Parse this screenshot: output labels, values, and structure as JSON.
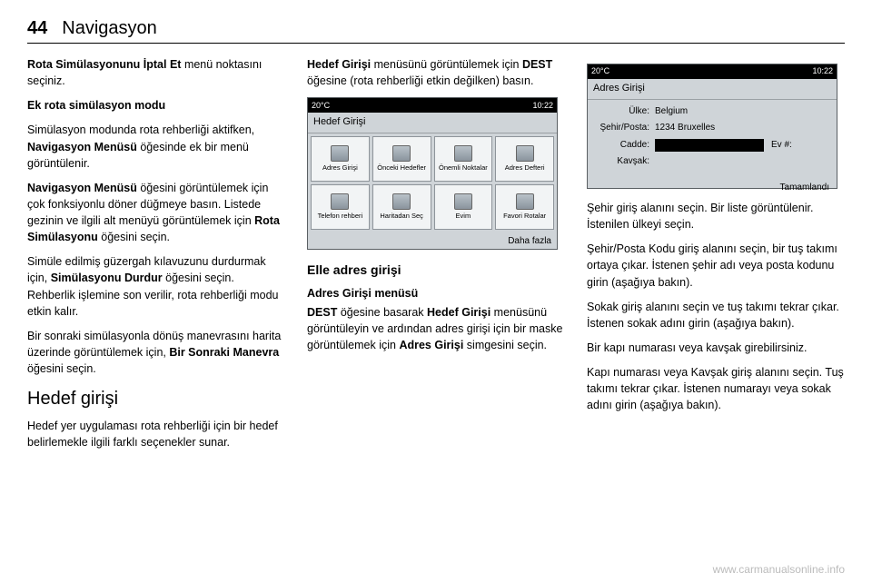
{
  "header": {
    "page_num": "44",
    "title": "Navigasyon"
  },
  "col1": {
    "p1a": "Rota Simülasyonunu İptal Et",
    "p1b": " menü noktasını seçiniz.",
    "sub1": "Ek rota simülasyon modu",
    "p2a": "Simülasyon modunda rota rehberliği aktifken, ",
    "p2b": "Navigasyon Menüsü",
    "p2c": " öğesinde ek bir menü görüntülenir.",
    "p3a": "Navigasyon Menüsü",
    "p3b": " öğesini görüntülemek için çok fonksiyonlu döner düğmeye basın. Listede gezinin ve ilgili alt menüyü görüntülemek için ",
    "p3c": "Rota Simülasyonu",
    "p3d": " öğesini seçin.",
    "p4a": "Simüle edilmiş güzergah kılavuzunu durdurmak için, ",
    "p4b": "Simülasyonu Durdur",
    "p4c": " öğesini seçin. Rehberlik işlemine son verilir, rota rehberliği modu etkin kalır.",
    "p5a": "Bir sonraki simülasyonla dönüş manevrasını harita üzerinde görüntülemek için, ",
    "p5b": "Bir Sonraki Manevra",
    "p5c": " öğesini seçin.",
    "h2": "Hedef girişi",
    "p6": "Hedef yer uygulaması rota rehberliği için bir hedef belirlemekle ilgili farklı seçenekler sunar."
  },
  "col2": {
    "p1a": "Hedef Girişi",
    "p1b": " menüsünü görüntülemek için ",
    "p1c": "DEST",
    "p1d": " öğesine (rota rehberliği etkin değilken) basın.",
    "screen1": {
      "status_left": "20°C",
      "status_right": "10:22",
      "title": "Hedef Girişi",
      "icons": [
        "Adres Girişi",
        "Önceki Hedefler",
        "Önemli Noktalar",
        "Adres Defteri",
        "Telefon rehberi",
        "Haritadan Seç",
        "Evim",
        "Favori Rotalar"
      ],
      "daha": "Daha fazla"
    },
    "h3": "Elle adres girişi",
    "sub2": "Adres Girişi menüsü",
    "p2a": "DEST",
    "p2b": " öğesine basarak ",
    "p2c": "Hedef Girişi",
    "p2d": " menüsünü görüntüleyin ve ardından adres girişi için bir maske görüntülemek için ",
    "p2e": "Adres Girişi",
    "p2f": " simgesini seçin."
  },
  "col3": {
    "screen2": {
      "status_left": "20°C",
      "status_right": "10:22",
      "title": "Adres Girişi",
      "row1_label": "Ülke:",
      "row1_value": "Belgium",
      "row2_label": "Şehir/Posta:",
      "row2_value": "1234 Bruxelles",
      "row3_label": "Cadde:",
      "row3_ev": "Ev #:",
      "row4_label": "Kavşak:",
      "tamam": "Tamamlandı"
    },
    "p1": "Şehir giriş alanını seçin. Bir liste görüntülenir. İstenilen ülkeyi seçin.",
    "p2": "Şehir/Posta Kodu giriş alanını seçin, bir tuş takımı ortaya çıkar. İstenen şehir adı veya posta kodunu girin (aşağıya bakın).",
    "p3": "Sokak giriş alanını seçin ve tuş takımı tekrar çıkar. İstenen sokak adını girin (aşağıya bakın).",
    "p4": "Bir kapı numarası veya kavşak girebilirsiniz.",
    "p5": "Kapı numarası veya Kavşak giriş alanını seçin. Tuş takımı tekrar çıkar. İstenen numarayı veya sokak adını girin (aşağıya bakın)."
  },
  "watermark": "www.carmanualsonline.info"
}
